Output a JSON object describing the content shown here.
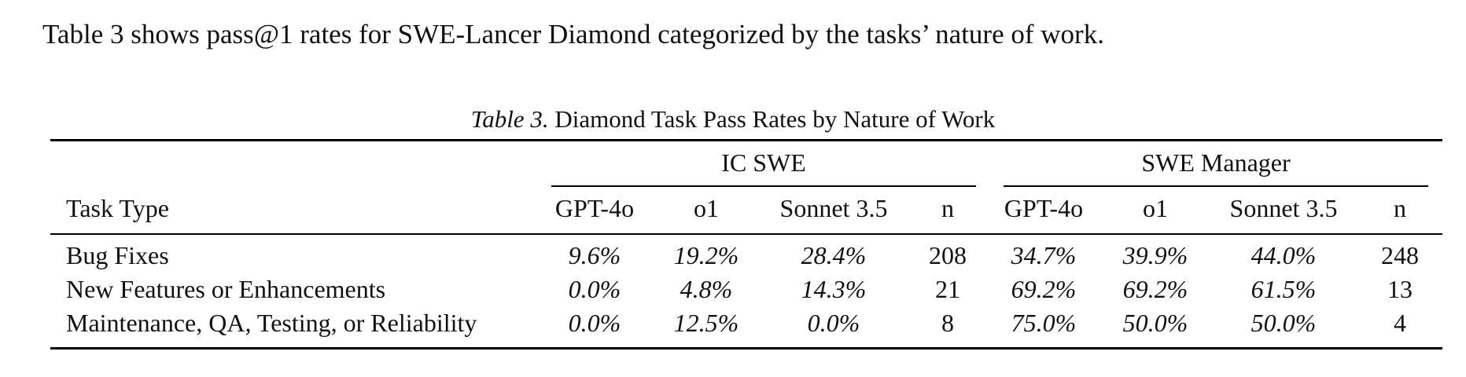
{
  "intro_text": "Table 3 shows pass@1 rates for SWE-Lancer Diamond categorized by the tasks’ nature of work.",
  "table": {
    "caption_label": "Table 3.",
    "caption_text": "Diamond Task Pass Rates by Nature of Work",
    "group_headers": [
      "IC SWE",
      "SWE Manager"
    ],
    "row_header": "Task Type",
    "columns": [
      "GPT-4o",
      "o1",
      "Sonnet 3.5",
      "n",
      "GPT-4o",
      "o1",
      "Sonnet 3.5",
      "n"
    ],
    "rows": [
      {
        "label": "Bug Fixes",
        "values": [
          "9.6%",
          "19.2%",
          "28.4%",
          "208",
          "34.7%",
          "39.9%",
          "44.0%",
          "248"
        ]
      },
      {
        "label": "New Features or Enhancements",
        "values": [
          "0.0%",
          "4.8%",
          "14.3%",
          "21",
          "69.2%",
          "69.2%",
          "61.5%",
          "13"
        ]
      },
      {
        "label": "Maintenance, QA, Testing, or Reliability",
        "values": [
          "0.0%",
          "12.5%",
          "0.0%",
          "8",
          "75.0%",
          "50.0%",
          "50.0%",
          "4"
        ]
      }
    ]
  }
}
